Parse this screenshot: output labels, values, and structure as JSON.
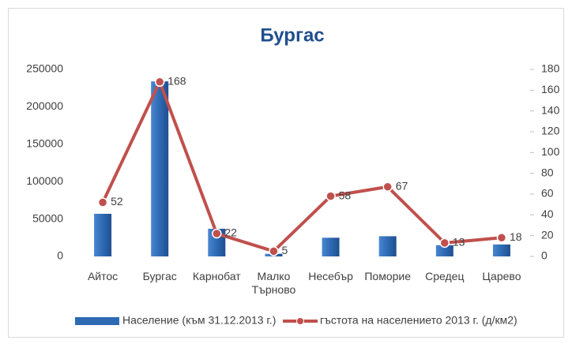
{
  "chart_data": {
    "type": "bar",
    "title": "Бургас",
    "categories": [
      "Айтос",
      "Бургас",
      "Карнобат",
      "Малко Търново",
      "Несебър",
      "Поморие",
      "Средец",
      "Царево"
    ],
    "series": [
      {
        "name": "Население (към 31.12.2013 г.)",
        "type": "bar",
        "color": "#2e6ab4",
        "values": [
          57000,
          234000,
          37000,
          3500,
          25000,
          27000,
          15000,
          16000
        ]
      },
      {
        "name": "гъстота на населението 2013 г. (д/км2)",
        "type": "line",
        "axis": "y2",
        "color": "#c0504d",
        "values": [
          52,
          168,
          22,
          5,
          58,
          67,
          13,
          18
        ]
      }
    ],
    "ylim": [
      0,
      250000
    ],
    "yticks": [
      0,
      50000,
      100000,
      150000,
      200000,
      250000
    ],
    "y2lim": [
      0,
      180
    ],
    "y2ticks": [
      0,
      20,
      40,
      60,
      80,
      100,
      120,
      140,
      160,
      180
    ],
    "grid": false,
    "legend": "bottom"
  }
}
